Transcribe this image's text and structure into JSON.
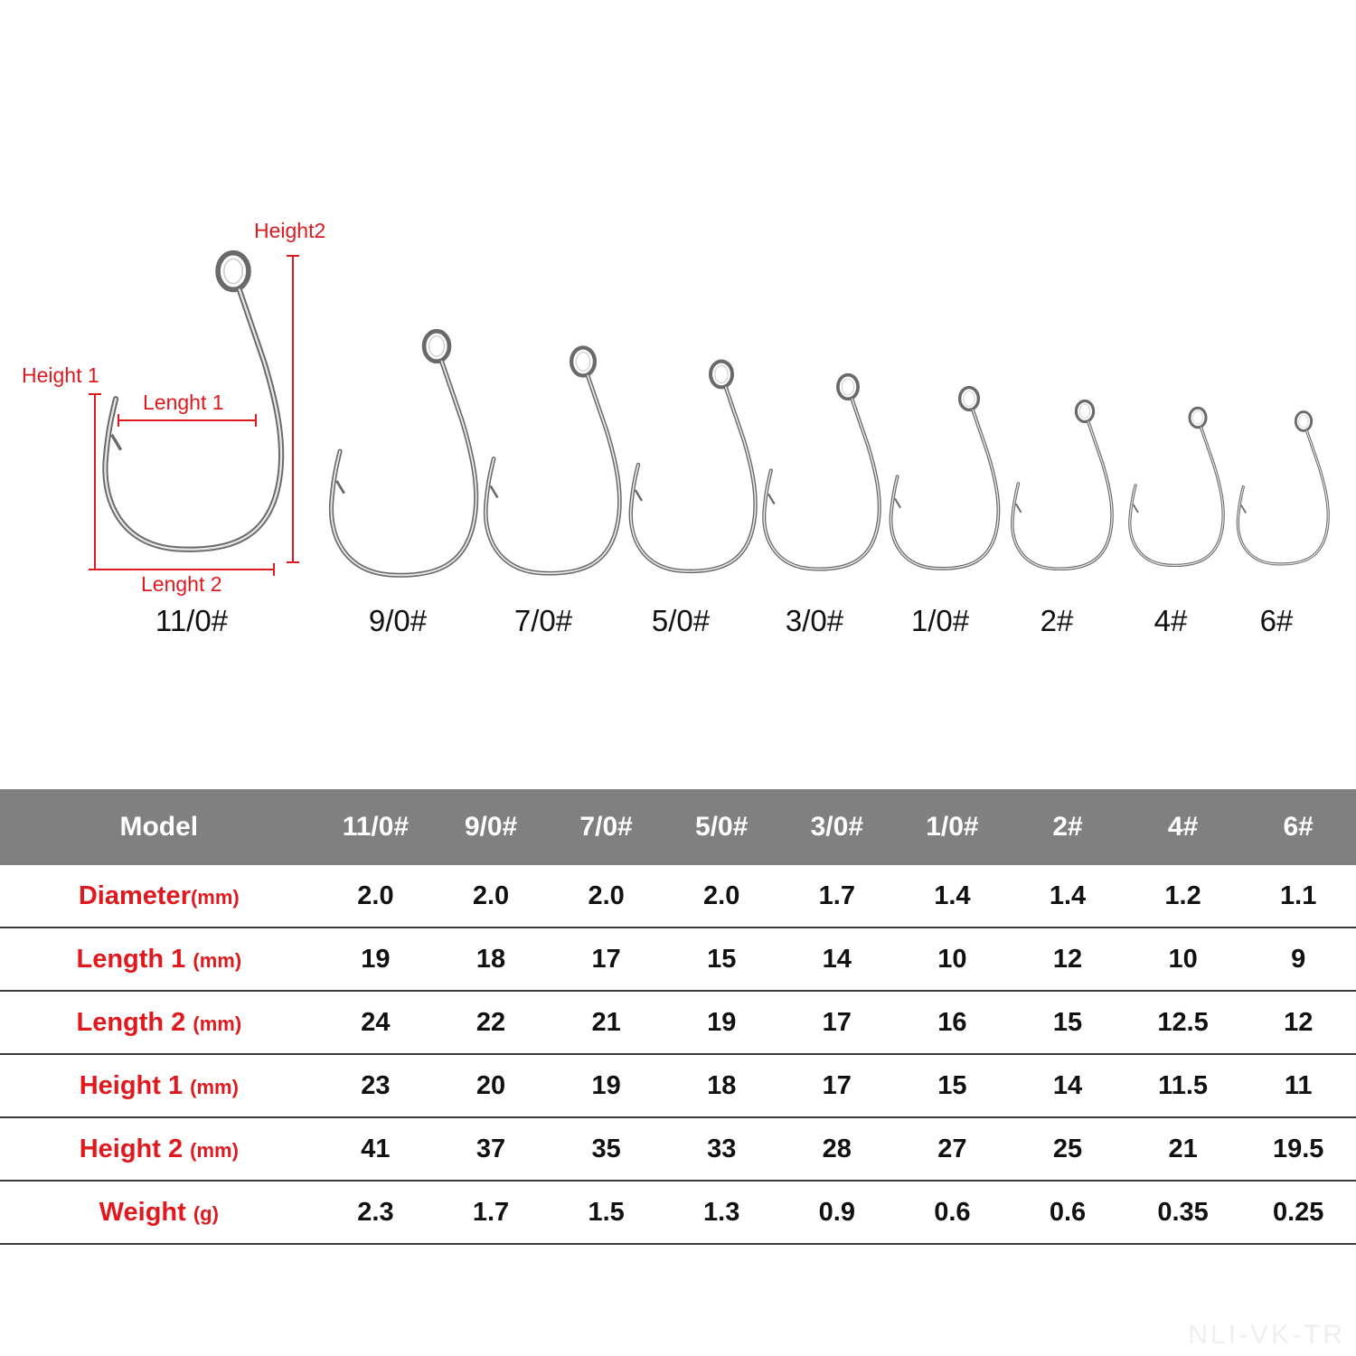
{
  "dimension_labels": {
    "height1": "Height 1",
    "height2": "Height2",
    "length1": "Lenght 1",
    "length2": "Lenght 2"
  },
  "hook_sizes": [
    "11/0#",
    "9/0#",
    "7/0#",
    "5/0#",
    "3/0#",
    "1/0#",
    "2#",
    "4#",
    "6#"
  ],
  "table": {
    "header_label": "Model",
    "columns": [
      "11/0#",
      "9/0#",
      "7/0#",
      "5/0#",
      "3/0#",
      "1/0#",
      "2#",
      "4#",
      "6#"
    ],
    "rows": [
      {
        "label": "Diameter",
        "unit": "(mm)",
        "values": [
          "2.0",
          "2.0",
          "2.0",
          "2.0",
          "1.7",
          "1.4",
          "1.4",
          "1.2",
          "1.1"
        ]
      },
      {
        "label": "Length 1 ",
        "unit": "(mm)",
        "values": [
          "19",
          "18",
          "17",
          "15",
          "14",
          "10",
          "12",
          "10",
          "9"
        ]
      },
      {
        "label": "Length 2 ",
        "unit": "(mm)",
        "values": [
          "24",
          "22",
          "21",
          "19",
          "17",
          "16",
          "15",
          "12.5",
          "12"
        ]
      },
      {
        "label": "Height 1 ",
        "unit": "(mm)",
        "values": [
          "23",
          "20",
          "19",
          "18",
          "17",
          "15",
          "14",
          "11.5",
          "11"
        ]
      },
      {
        "label": "Height 2 ",
        "unit": "(mm)",
        "values": [
          "41",
          "37",
          "35",
          "33",
          "28",
          "27",
          "25",
          "21",
          "19.5"
        ]
      },
      {
        "label": "Weight ",
        "unit": "(g)",
        "values": [
          "2.3",
          "1.7",
          "1.5",
          "1.3",
          "0.9",
          "0.6",
          "0.6",
          "0.35",
          "0.25"
        ]
      }
    ]
  },
  "watermark": "NLI-VK-TR",
  "colors": {
    "accent_red": "#e0191e",
    "header_gray": "#808080"
  }
}
